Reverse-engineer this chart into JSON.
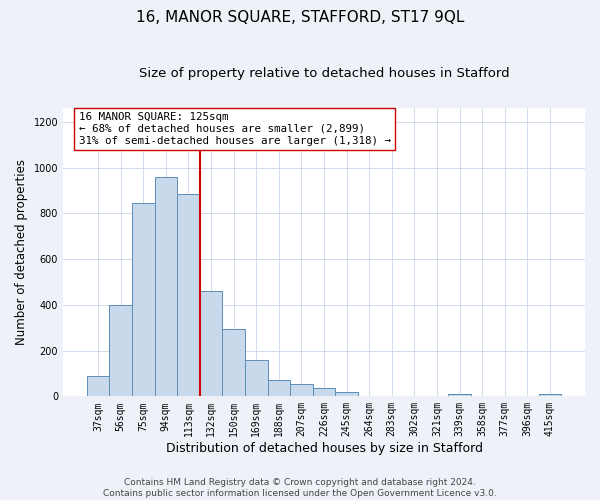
{
  "title": "16, MANOR SQUARE, STAFFORD, ST17 9QL",
  "subtitle": "Size of property relative to detached houses in Stafford",
  "xlabel": "Distribution of detached houses by size in Stafford",
  "ylabel": "Number of detached properties",
  "bar_labels": [
    "37sqm",
    "56sqm",
    "75sqm",
    "94sqm",
    "113sqm",
    "132sqm",
    "150sqm",
    "169sqm",
    "188sqm",
    "207sqm",
    "226sqm",
    "245sqm",
    "264sqm",
    "283sqm",
    "302sqm",
    "321sqm",
    "339sqm",
    "358sqm",
    "377sqm",
    "396sqm",
    "415sqm"
  ],
  "bar_heights": [
    90,
    400,
    845,
    960,
    885,
    460,
    295,
    160,
    70,
    52,
    35,
    18,
    0,
    0,
    0,
    0,
    10,
    0,
    0,
    0,
    10
  ],
  "bar_color": "#c9d9ec",
  "bar_edge_color": "#5b8db8",
  "vline_color": "#cc0000",
  "ylim": [
    0,
    1260
  ],
  "yticks": [
    0,
    200,
    400,
    600,
    800,
    1000,
    1200
  ],
  "annotation_title": "16 MANOR SQUARE: 125sqm",
  "annotation_line1": "← 68% of detached houses are smaller (2,899)",
  "annotation_line2": "31% of semi-detached houses are larger (1,318) →",
  "footer1": "Contains HM Land Registry data © Crown copyright and database right 2024.",
  "footer2": "Contains public sector information licensed under the Open Government Licence v3.0.",
  "background_color": "#eef2f8",
  "plot_bg_color": "#ffffff",
  "grid_color": "#c8d4e8",
  "title_fontsize": 11,
  "subtitle_fontsize": 9.5,
  "xlabel_fontsize": 9,
  "ylabel_fontsize": 8.5,
  "tick_fontsize": 7,
  "annotation_fontsize": 7.8,
  "footer_fontsize": 6.5
}
